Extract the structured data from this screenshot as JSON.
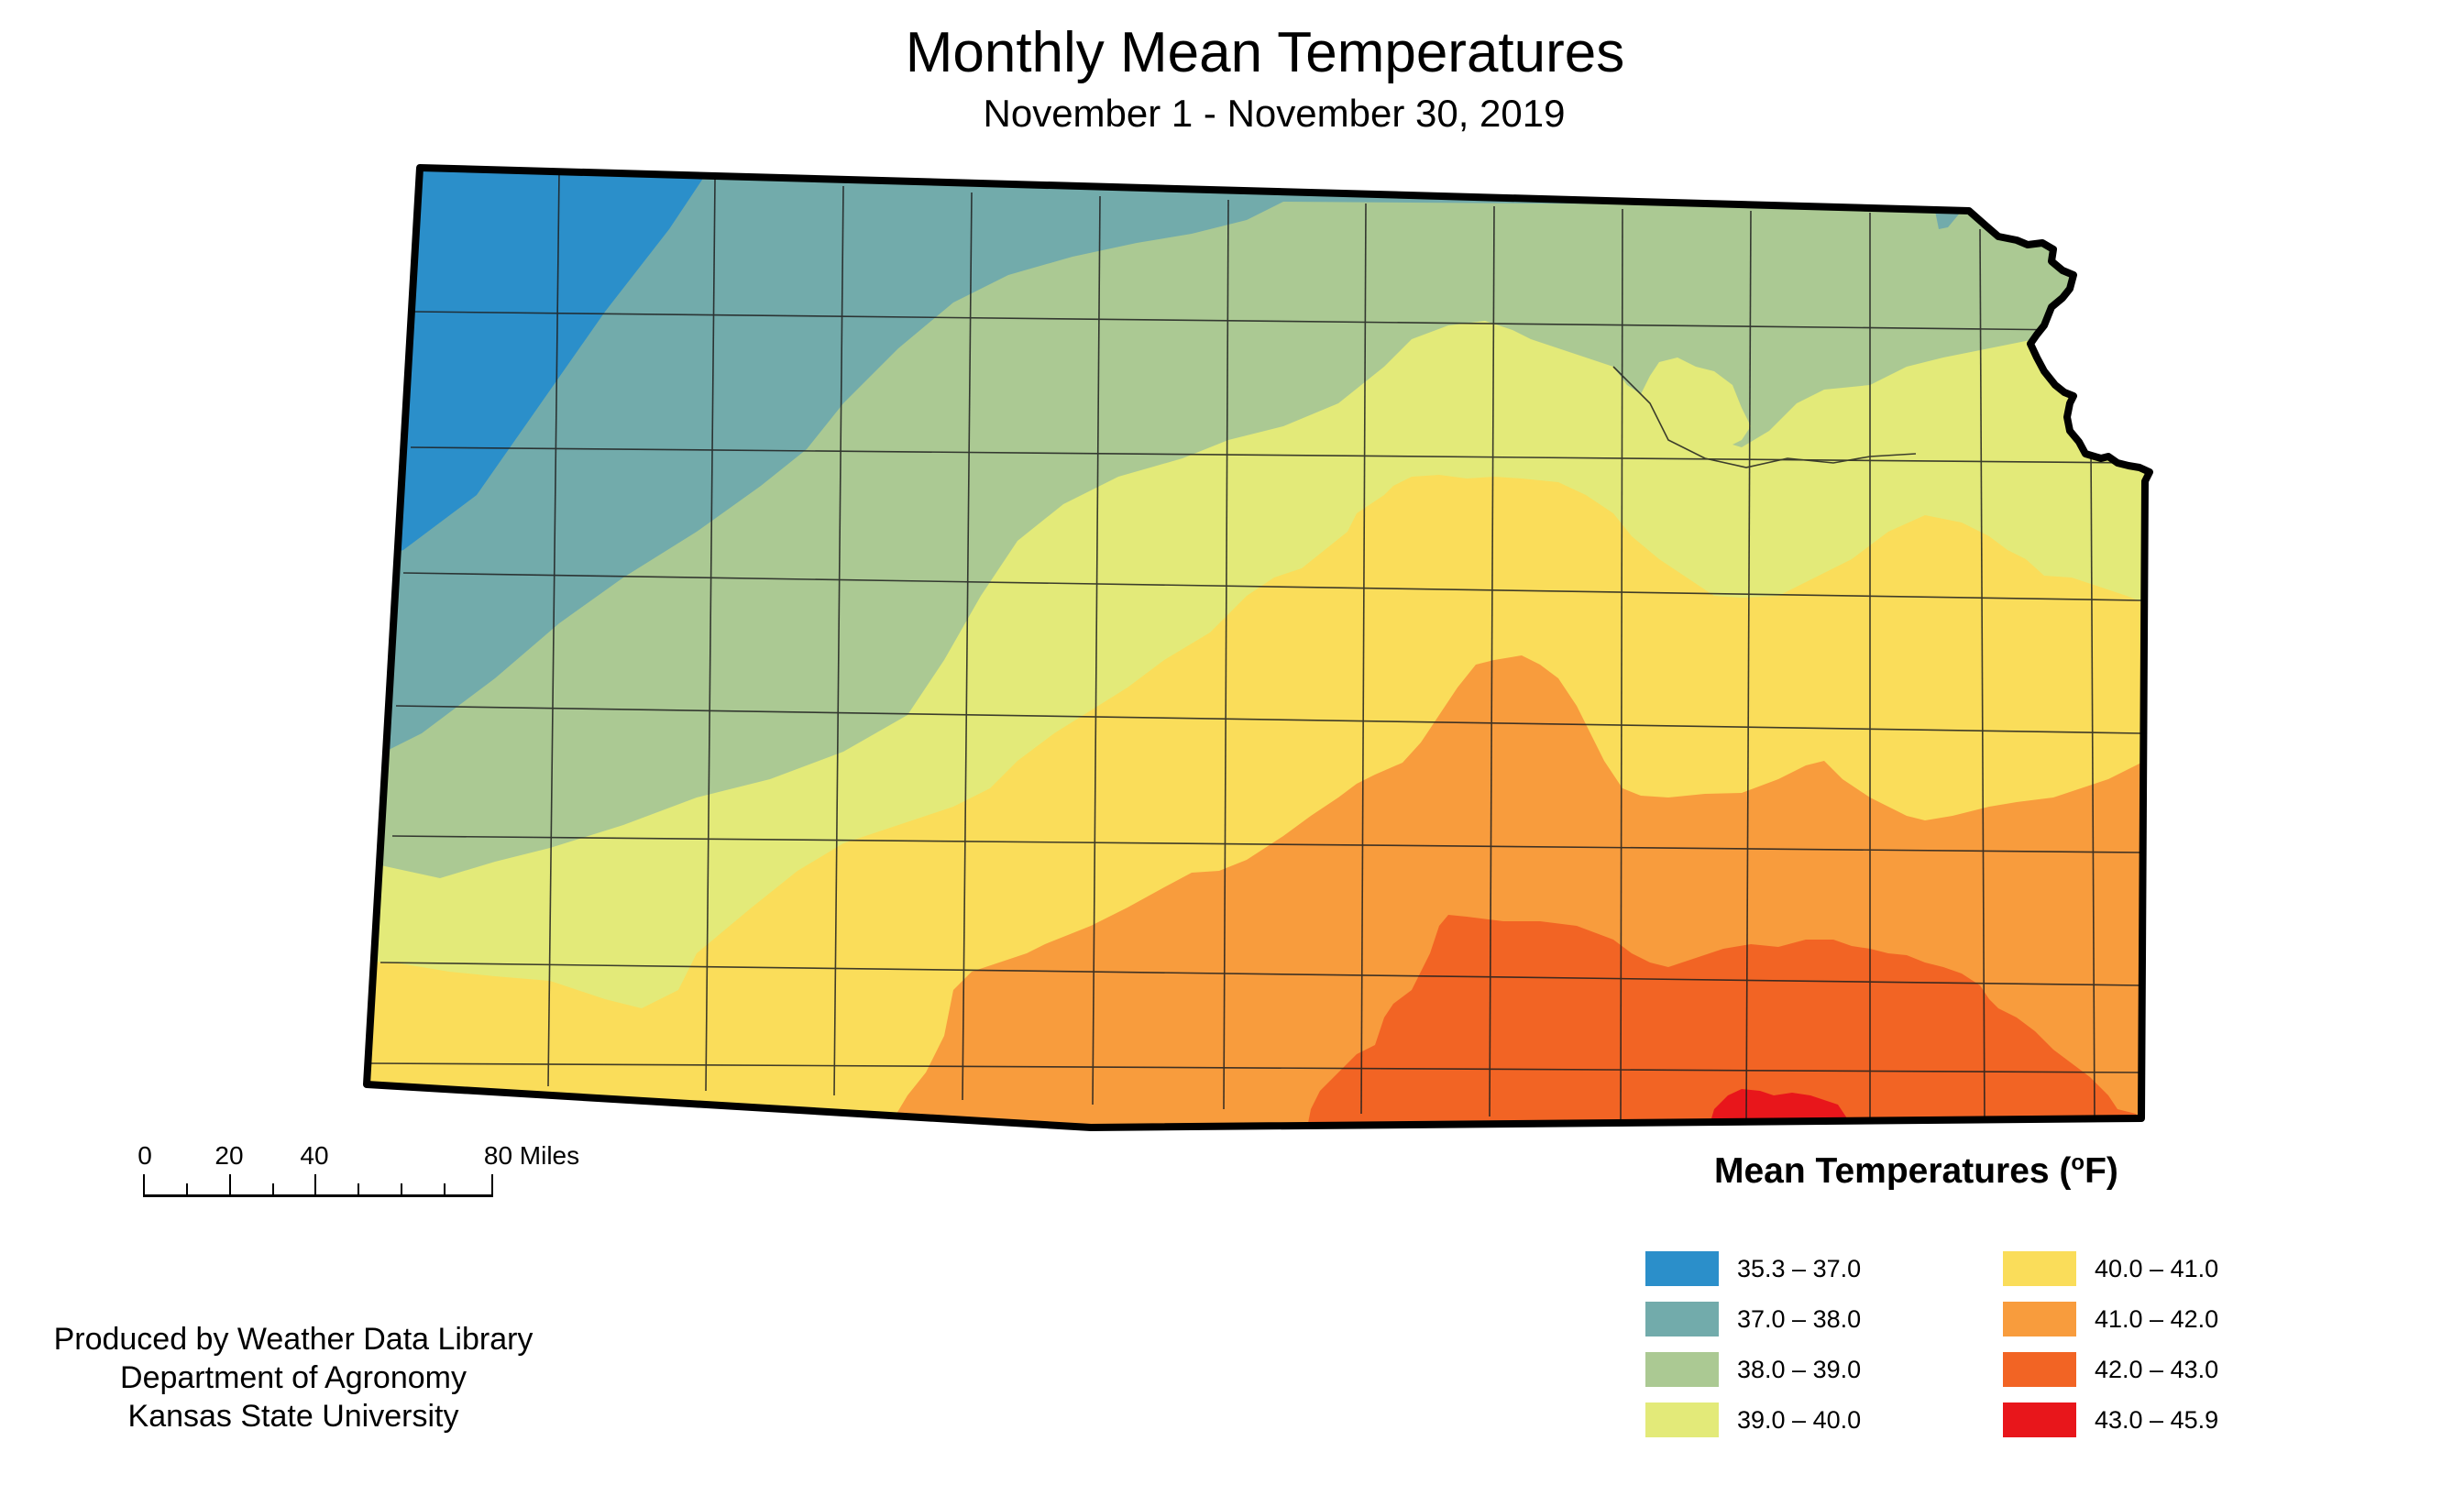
{
  "title": "Monthly Mean Temperatures",
  "subtitle": "November 1 - November 30, 2019",
  "scale_bar": {
    "labels": [
      "0",
      "20",
      "40",
      "80 Miles"
    ]
  },
  "credits": [
    "Produced by Weather Data Library",
    "Department of Agronomy",
    "Kansas State University"
  ],
  "legend": {
    "title": "Mean Temperatures (",
    "title_unit": "o",
    "title_suffix": "F)",
    "items": [
      {
        "label": "35.3 – 37.0",
        "color": "#2B8FCA"
      },
      {
        "label": "37.0 – 38.0",
        "color": "#72ABAB"
      },
      {
        "label": "38.0 – 39.0",
        "color": "#ABC993"
      },
      {
        "label": "39.0 – 40.0",
        "color": "#E3EA79"
      },
      {
        "label": "40.0 – 41.0",
        "color": "#FADD5A"
      },
      {
        "label": "41.0 – 42.0",
        "color": "#F89C3D"
      },
      {
        "label": "42.0 – 43.0",
        "color": "#F26424"
      },
      {
        "label": "43.0 – 45.9",
        "color": "#E8161B"
      }
    ]
  }
}
